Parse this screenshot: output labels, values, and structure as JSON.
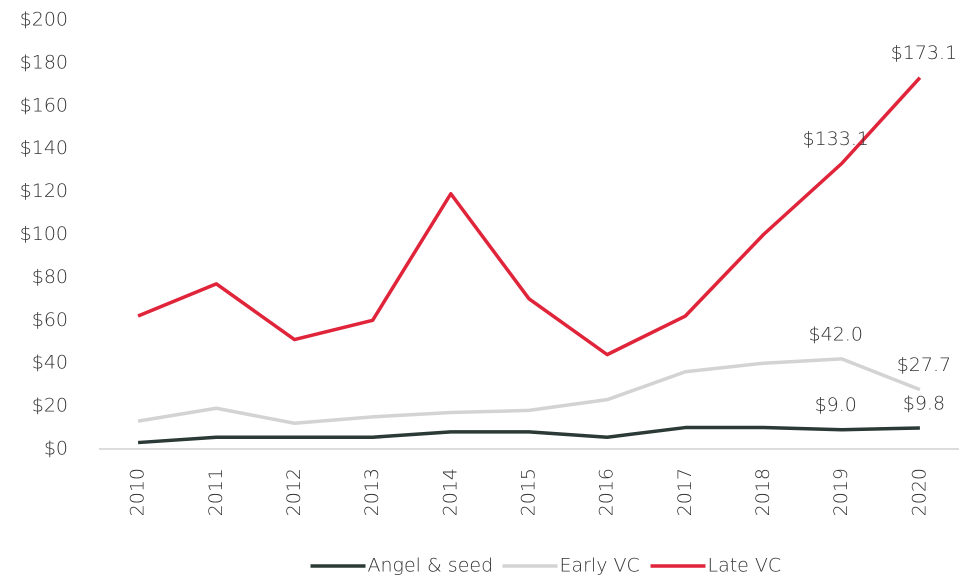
{
  "chart_data": {
    "type": "line",
    "categories": [
      "2010",
      "2011",
      "2012",
      "2013",
      "2014",
      "2015",
      "2016",
      "2017",
      "2018",
      "2019",
      "2020"
    ],
    "series": [
      {
        "name": "Angel & seed",
        "color": "#2b3a36",
        "values": [
          3,
          5.5,
          5.5,
          5.5,
          8,
          8,
          5.5,
          10,
          10,
          9.0,
          9.8
        ],
        "value_labels": [
          null,
          null,
          null,
          null,
          null,
          null,
          null,
          null,
          null,
          "$9.0",
          "$9.8"
        ]
      },
      {
        "name": "Early VC",
        "color": "#d3d3d3",
        "values": [
          13,
          19,
          12,
          15,
          17,
          18,
          23,
          36,
          40,
          42.0,
          27.7
        ],
        "value_labels": [
          null,
          null,
          null,
          null,
          null,
          null,
          null,
          null,
          null,
          "$42.0",
          "$27.7"
        ]
      },
      {
        "name": "Late VC",
        "color": "#e0243a",
        "values": [
          62,
          77,
          51,
          60,
          119,
          70,
          44,
          62,
          100,
          133.1,
          173.1
        ],
        "value_labels": [
          null,
          null,
          null,
          null,
          null,
          null,
          null,
          null,
          null,
          "$133.1",
          "$173.1"
        ]
      }
    ],
    "ylim": [
      0,
      200
    ],
    "yticks": [
      {
        "value": 0,
        "label": "$0"
      },
      {
        "value": 20,
        "label": "$20"
      },
      {
        "value": 40,
        "label": "$40"
      },
      {
        "value": 60,
        "label": "$60"
      },
      {
        "value": 80,
        "label": "$80"
      },
      {
        "value": 100,
        "label": "$100"
      },
      {
        "value": 120,
        "label": "$120"
      },
      {
        "value": 140,
        "label": "$140"
      },
      {
        "value": 160,
        "label": "$160"
      },
      {
        "value": 180,
        "label": "$180"
      },
      {
        "value": 200,
        "label": "$200"
      }
    ],
    "grid": false,
    "legend": "bottom"
  }
}
